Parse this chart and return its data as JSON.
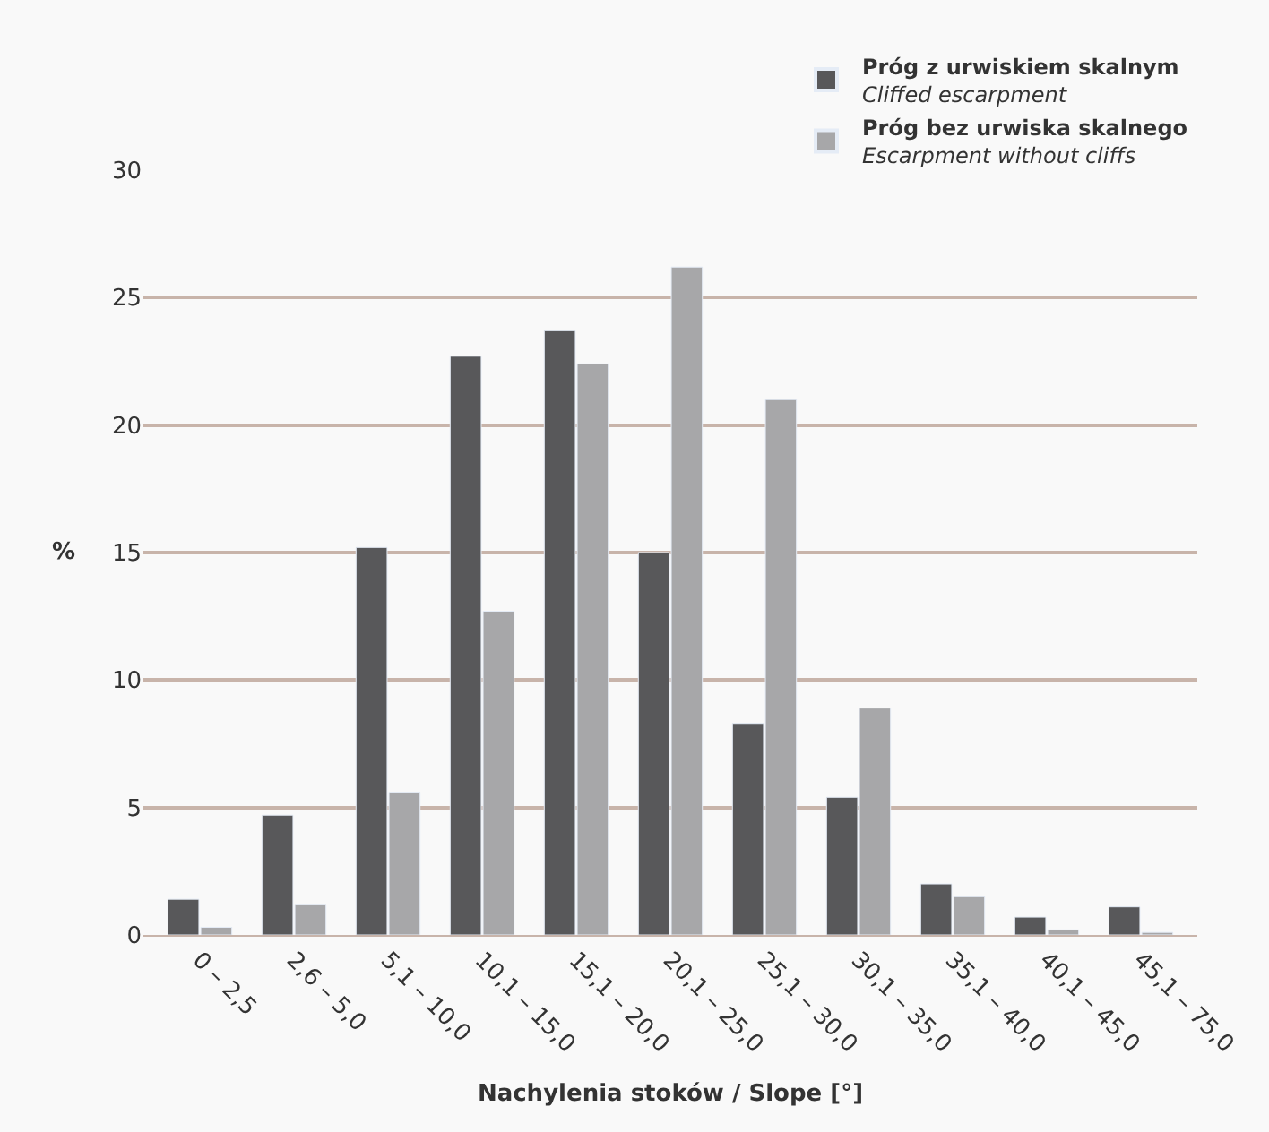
{
  "chart_data": {
    "type": "bar",
    "xlabel": "Nachylenia stoków / Slope [°]",
    "ylabel": "%",
    "categories": [
      "0 – 2,5",
      "2,6 – 5,0",
      "5,1 – 10,0",
      "10,1 – 15,0",
      "15,1 – 20,0",
      "20,1 – 25,0",
      "25,1 – 30,0",
      "30,1 – 35,0",
      "35,1 – 40,0",
      "40,1 – 45,0",
      "45,1 – 75,0"
    ],
    "series": [
      {
        "name": "Próg z urwiskiem skalnym\nCliffed escarpment",
        "color": "#58585a",
        "values": [
          1.4,
          4.7,
          15.2,
          22.7,
          23.7,
          15.0,
          8.3,
          5.4,
          2.0,
          0.7,
          1.1
        ]
      },
      {
        "name": "Próg bez urwiska skalnego\nEscarpment without cliffs",
        "color": "#a7a7a9",
        "values": [
          0.3,
          1.2,
          5.6,
          12.7,
          22.4,
          26.2,
          21.0,
          8.9,
          1.5,
          0.2,
          0.1
        ]
      }
    ],
    "ylim": [
      0,
      30
    ],
    "yticks": [
      0,
      5,
      10,
      15,
      20,
      25,
      30
    ],
    "grid": "y",
    "legend": "top right"
  }
}
